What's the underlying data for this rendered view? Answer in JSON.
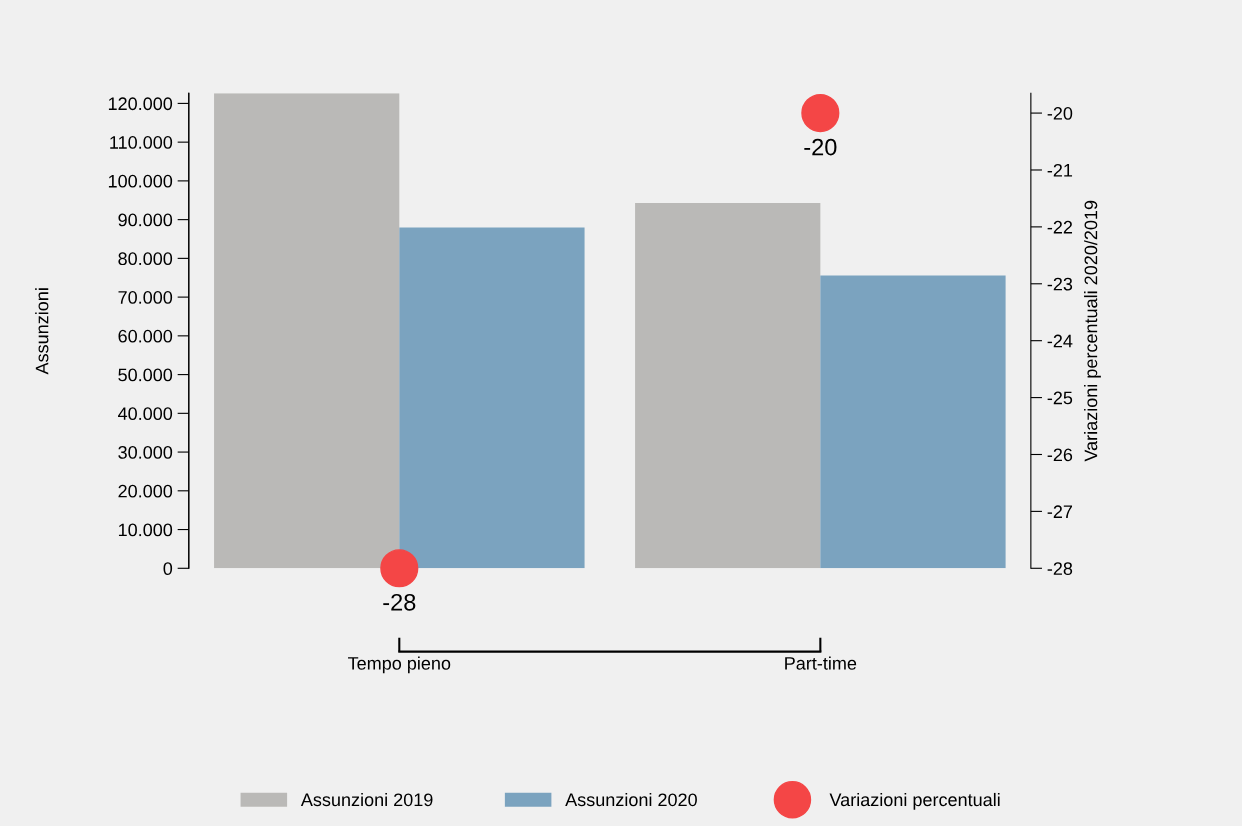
{
  "chart_data": {
    "type": "bar",
    "categories": [
      "Tempo pieno",
      "Part-time"
    ],
    "ylabel": "Assunzioni",
    "y2label": "Variazioni percentuali 2020/2019",
    "series": [
      {
        "name": "Assunzioni 2019",
        "color": "#bab9b7",
        "values": [
          122600,
          94300
        ]
      },
      {
        "name": "Assunzioni 2020",
        "color": "#7ba3bf",
        "values": [
          88000,
          75600
        ]
      },
      {
        "name": "Variazioni percentuali",
        "type": "scatter",
        "axis": "y2",
        "color": "#f44646",
        "values": [
          -28,
          -20
        ],
        "value_labels": [
          "-28",
          "-20"
        ]
      }
    ],
    "ylim": [
      0,
      122600
    ],
    "yticks": [
      {
        "value": 0,
        "label": "0"
      },
      {
        "value": 10000,
        "label": "10.000"
      },
      {
        "value": 20000,
        "label": "20.000"
      },
      {
        "value": 30000,
        "label": "30.000"
      },
      {
        "value": 40000,
        "label": "40.000"
      },
      {
        "value": 50000,
        "label": "50.000"
      },
      {
        "value": 60000,
        "label": "60.000"
      },
      {
        "value": 70000,
        "label": "70.000"
      },
      {
        "value": 80000,
        "label": "80.000"
      },
      {
        "value": 90000,
        "label": "90.000"
      },
      {
        "value": 100000,
        "label": "100.000"
      },
      {
        "value": 110000,
        "label": "110.000"
      },
      {
        "value": 120000,
        "label": "120.000"
      }
    ],
    "y2lim": [
      -28,
      -19.653
    ],
    "y2ticks": [
      -20,
      -21,
      -22,
      -23,
      -24,
      -25,
      -26,
      -27,
      -28
    ],
    "legend": "bottom",
    "grid": false
  }
}
